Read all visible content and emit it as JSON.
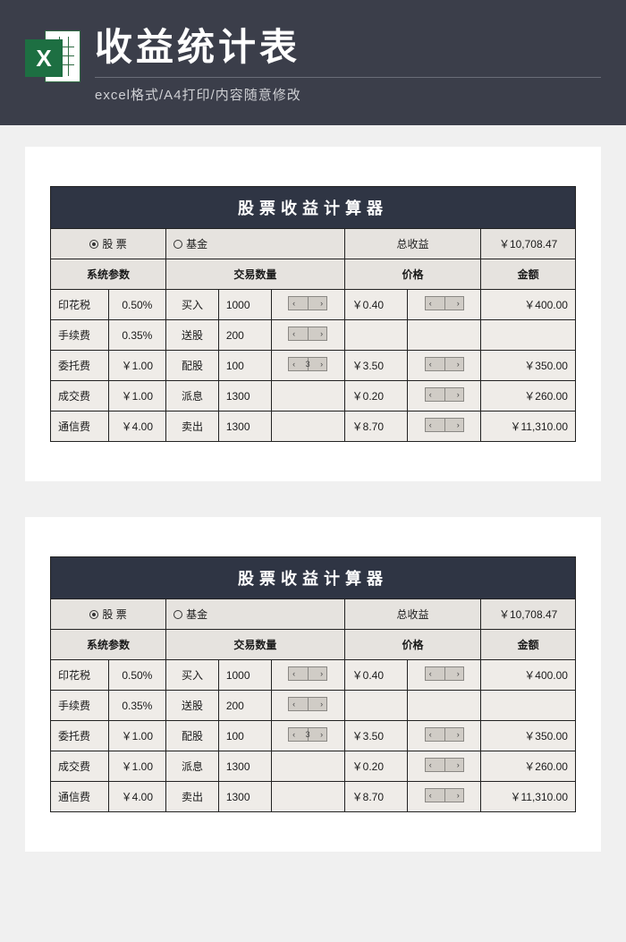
{
  "header": {
    "title": "收益统计表",
    "subtitle": "excel格式/A4打印/内容随意修改",
    "icon_letter": "X"
  },
  "sheet": {
    "title": "股票收益计算器",
    "radio_stock": "股 票",
    "radio_fund": "基金",
    "total_label": "总收益",
    "total_value": "￥10,708.47",
    "col_sys": "系统参数",
    "col_qty": "交易数量",
    "col_price": "价格",
    "col_amount": "金额",
    "rows": [
      {
        "p_label": "印花税",
        "p_val": "0.50%",
        "t_label": "买入",
        "t_qty": "1000",
        "price": "￥0.40",
        "amount": "￥400.00"
      },
      {
        "p_label": "手续费",
        "p_val": "0.35%",
        "t_label": "送股",
        "t_qty": "200",
        "price": "",
        "amount": ""
      },
      {
        "p_label": "委托费",
        "p_val": "￥1.00",
        "t_label": "配股",
        "t_qty": "100",
        "price": "￥3.50",
        "amount": "￥350.00"
      },
      {
        "p_label": "成交费",
        "p_val": "￥1.00",
        "t_label": "派息",
        "t_qty": "1300",
        "price": "￥0.20",
        "amount": "￥260.00"
      },
      {
        "p_label": "通信费",
        "p_val": "￥4.00",
        "t_label": "卖出",
        "t_qty": "1300",
        "price": "￥8.70",
        "amount": "￥11,310.00"
      }
    ],
    "spin_label": "3"
  },
  "colors": {
    "header_bg": "#3b3e4a",
    "title_bg": "#2f3544",
    "hdr_bg": "#e6e3df",
    "body_bg": "#efece8",
    "border": "#222222",
    "page_bg": "#f0f0f0"
  }
}
